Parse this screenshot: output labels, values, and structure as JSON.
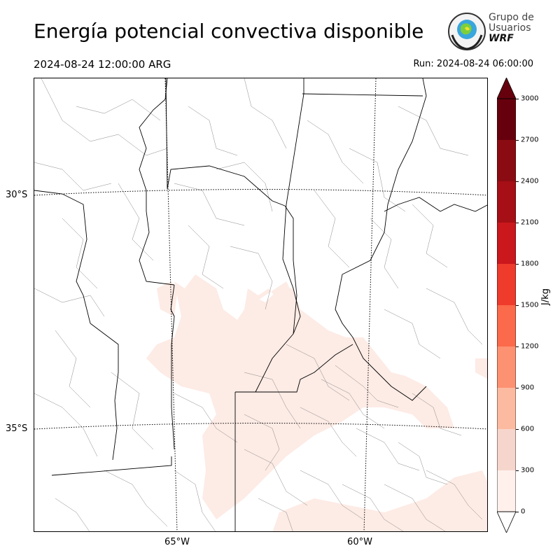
{
  "header": {
    "title": "Energía potencial convectiva disponible",
    "valid_time": "2024-08-24 12:00:00 ARG",
    "run_time": "Run: 2024-08-24 06:00:00"
  },
  "logo": {
    "line1": "Grupo de",
    "line2": "Usuarios",
    "line3": "WRF"
  },
  "map": {
    "lat_labels": [
      "30°S",
      "35°S"
    ],
    "lon_labels": [
      "65°W",
      "60°W"
    ],
    "field_color": "#fdebe5",
    "border_color": "#000000",
    "department_color": "#888888",
    "graticule_style": "dotted"
  },
  "colorbar": {
    "unit": "J/kg",
    "ticks": [
      "3000",
      "2700",
      "2400",
      "2100",
      "1800",
      "1500",
      "1200",
      "900",
      "600",
      "300",
      "0"
    ],
    "colors": [
      "#fff0ec",
      "#f6d6cc",
      "#fcbba1",
      "#fc9272",
      "#fb6a4a",
      "#ef3b2c",
      "#cb181d",
      "#a50f15",
      "#8a0c12",
      "#67000d"
    ],
    "extend": "both"
  }
}
